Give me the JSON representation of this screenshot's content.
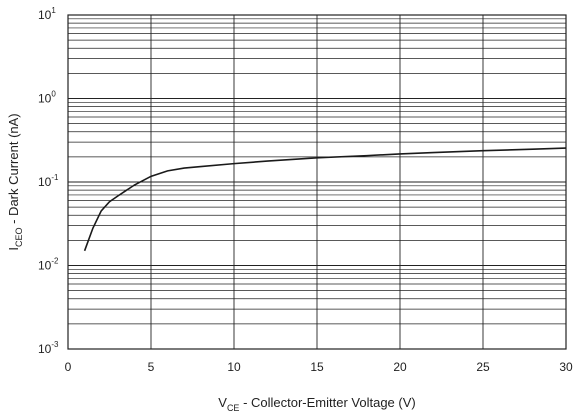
{
  "chart_data": {
    "type": "line",
    "xscale": "linear",
    "yscale": "log",
    "xlim": [
      0,
      30
    ],
    "ylim": [
      0.001,
      10
    ],
    "grid": true,
    "x_ticks": [
      0,
      5,
      10,
      15,
      20,
      25,
      30
    ],
    "x_tick_labels": [
      "0",
      "5",
      "10",
      "15",
      "20",
      "25",
      "30"
    ],
    "y_ticks": [
      0.001,
      0.01,
      0.1,
      1,
      10
    ],
    "y_tick_labels": [
      {
        "base": "10",
        "exp": "-3"
      },
      {
        "base": "10",
        "exp": "-2"
      },
      {
        "base": "10",
        "exp": "-1"
      },
      {
        "base": "10",
        "exp": "0"
      },
      {
        "base": "10",
        "exp": "1"
      }
    ],
    "xlabel": {
      "main": "V",
      "sub": "CE",
      "rest": " - Collector-Emitter Voltage (V)"
    },
    "ylabel": {
      "main": "I",
      "sub": "CEO",
      "rest": " - Dark Current (nA)"
    },
    "series": [
      {
        "x": [
          1,
          1.5,
          2,
          2.5,
          3,
          4,
          5,
          6,
          7,
          8,
          10,
          12,
          15,
          18,
          20,
          22,
          25,
          28,
          30
        ],
        "y": [
          0.015,
          0.028,
          0.045,
          0.058,
          0.068,
          0.092,
          0.117,
          0.136,
          0.147,
          0.153,
          0.166,
          0.178,
          0.195,
          0.207,
          0.217,
          0.225,
          0.237,
          0.247,
          0.255
        ]
      }
    ],
    "line_color": "#1a1a1a",
    "grid_color": "#222222"
  }
}
